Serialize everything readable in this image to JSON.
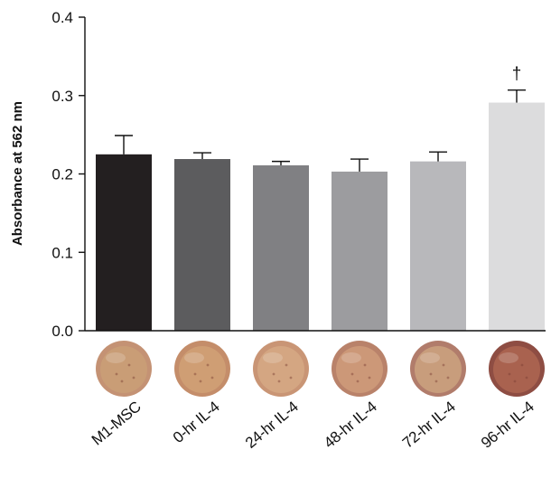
{
  "chart_data": {
    "type": "bar",
    "title": "",
    "xlabel": "",
    "ylabel": "Absorbance at 562 nm",
    "ylim": [
      0,
      0.4
    ],
    "yticks": [
      "0.0",
      "0.1",
      "0.2",
      "0.3",
      "0.4"
    ],
    "grid": false,
    "legend": "none",
    "categories": [
      "M1-MSC",
      "0-hr IL-4",
      "24-hr IL-4",
      "48-hr IL-4",
      "72-hr IL-4",
      "96-hr IL-4"
    ],
    "values": [
      0.225,
      0.219,
      0.211,
      0.203,
      0.216,
      0.291
    ],
    "errors": [
      0.024,
      0.008,
      0.005,
      0.016,
      0.012,
      0.016
    ],
    "bar_colors": [
      "#231f20",
      "#5c5c5e",
      "#808083",
      "#9c9c9f",
      "#b8b8bb",
      "#dcdcdd"
    ],
    "annotations": [
      {
        "category": "96-hr IL-4",
        "text": "†"
      }
    ],
    "well_images": [
      {
        "category": "M1-MSC",
        "rim": "#c49274",
        "fill": "#c99d76"
      },
      {
        "category": "0-hr IL-4",
        "rim": "#c48d6a",
        "fill": "#cf9e74"
      },
      {
        "category": "24-hr IL-4",
        "rim": "#c99575",
        "fill": "#d4a682"
      },
      {
        "category": "48-hr IL-4",
        "rim": "#b9826a",
        "fill": "#cc9878"
      },
      {
        "category": "72-hr IL-4",
        "rim": "#b17c6b",
        "fill": "#c89d7c"
      },
      {
        "category": "96-hr IL-4",
        "rim": "#8e4d43",
        "fill": "#a9624f"
      }
    ]
  }
}
